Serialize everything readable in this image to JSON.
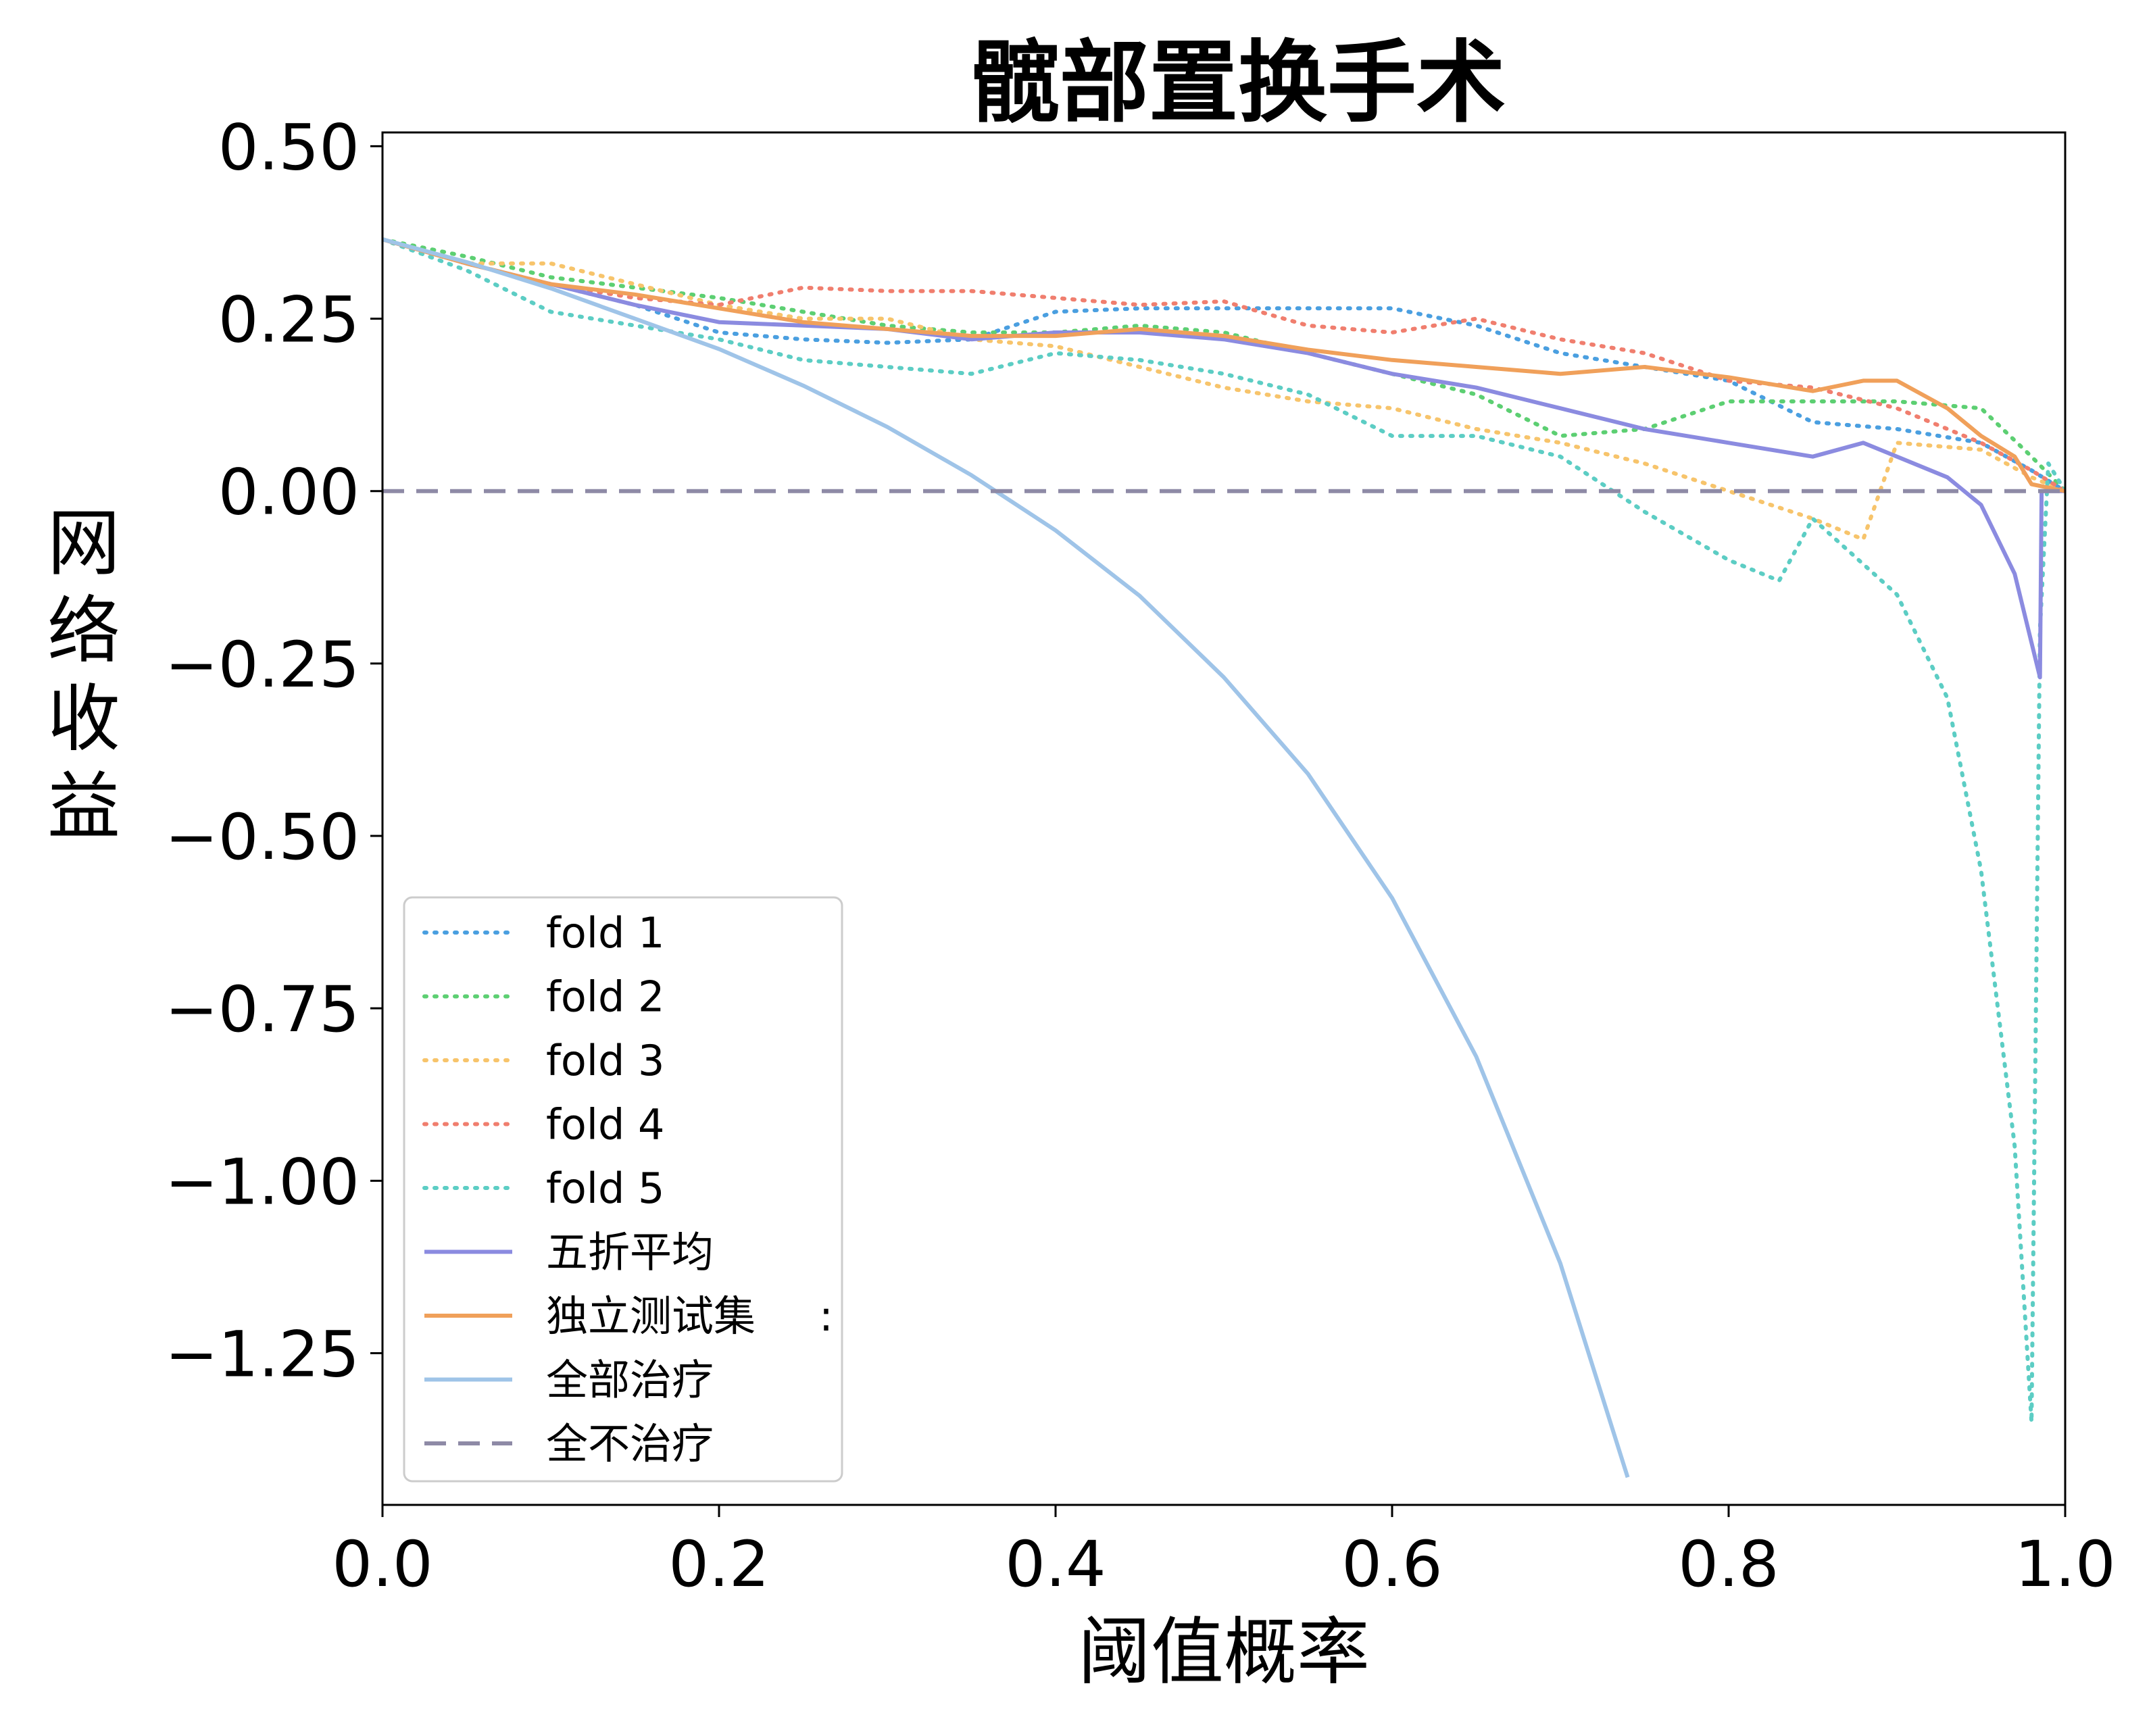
{
  "chart_data": {
    "type": "line",
    "title": "髋部置换手术",
    "xlabel": "阈值概率",
    "ylabel": "网络收益",
    "xlim": [
      0.0,
      1.0
    ],
    "ylim": [
      -1.47,
      0.52
    ],
    "xticks": [
      0.0,
      0.2,
      0.4,
      0.6,
      0.8,
      1.0
    ],
    "xtick_labels": [
      "0.0",
      "0.2",
      "0.4",
      "0.6",
      "0.8",
      "1.0"
    ],
    "yticks": [
      0.5,
      0.25,
      0.0,
      -0.25,
      -0.5,
      -0.75,
      -1.0,
      -1.25
    ],
    "ytick_labels": [
      "0.50",
      "0.25",
      "0.00",
      "−0.25",
      "−0.50",
      "−0.75",
      "−1.00",
      "−1.25"
    ],
    "grid": false,
    "legend_position": "lower-left",
    "series": [
      {
        "name": "fold 1",
        "style": "dotted",
        "color": "#4a9fe0",
        "x": [
          0.0,
          0.05,
          0.1,
          0.15,
          0.2,
          0.25,
          0.3,
          0.35,
          0.4,
          0.45,
          0.5,
          0.55,
          0.6,
          0.65,
          0.7,
          0.75,
          0.8,
          0.85,
          0.9,
          0.95,
          0.98,
          1.0
        ],
        "y": [
          0.365,
          0.33,
          0.3,
          0.27,
          0.23,
          0.22,
          0.215,
          0.22,
          0.26,
          0.265,
          0.265,
          0.265,
          0.265,
          0.24,
          0.2,
          0.18,
          0.16,
          0.1,
          0.09,
          0.07,
          0.03,
          0.0
        ]
      },
      {
        "name": "fold 2",
        "style": "dotted",
        "color": "#5ccf72",
        "x": [
          0.0,
          0.05,
          0.1,
          0.15,
          0.2,
          0.25,
          0.3,
          0.35,
          0.4,
          0.45,
          0.5,
          0.55,
          0.6,
          0.65,
          0.7,
          0.75,
          0.8,
          0.85,
          0.9,
          0.95,
          0.98,
          1.0
        ],
        "y": [
          0.365,
          0.34,
          0.31,
          0.295,
          0.28,
          0.26,
          0.24,
          0.23,
          0.23,
          0.24,
          0.23,
          0.2,
          0.17,
          0.14,
          0.08,
          0.09,
          0.13,
          0.13,
          0.13,
          0.12,
          0.05,
          0.0
        ]
      },
      {
        "name": "fold 3",
        "style": "dotted",
        "color": "#f7c46b",
        "x": [
          0.0,
          0.05,
          0.1,
          0.15,
          0.2,
          0.25,
          0.3,
          0.35,
          0.4,
          0.45,
          0.5,
          0.55,
          0.6,
          0.65,
          0.7,
          0.75,
          0.8,
          0.85,
          0.88,
          0.9,
          0.95,
          0.98,
          1.0
        ],
        "y": [
          0.365,
          0.33,
          0.33,
          0.3,
          0.27,
          0.25,
          0.25,
          0.22,
          0.21,
          0.18,
          0.15,
          0.13,
          0.12,
          0.09,
          0.07,
          0.04,
          0.0,
          -0.04,
          -0.07,
          0.07,
          0.06,
          0.02,
          0.0
        ]
      },
      {
        "name": "fold 4",
        "style": "dotted",
        "color": "#f07e6e",
        "x": [
          0.0,
          0.05,
          0.1,
          0.15,
          0.2,
          0.25,
          0.3,
          0.35,
          0.4,
          0.45,
          0.5,
          0.55,
          0.6,
          0.65,
          0.7,
          0.75,
          0.8,
          0.85,
          0.9,
          0.95,
          0.98,
          1.0
        ],
        "y": [
          0.365,
          0.33,
          0.3,
          0.28,
          0.27,
          0.295,
          0.29,
          0.29,
          0.28,
          0.27,
          0.275,
          0.24,
          0.23,
          0.25,
          0.22,
          0.2,
          0.16,
          0.15,
          0.12,
          0.07,
          0.03,
          0.0
        ]
      },
      {
        "name": "fold 5",
        "style": "dotted",
        "color": "#5ccdc4",
        "x": [
          0.0,
          0.05,
          0.1,
          0.15,
          0.2,
          0.25,
          0.3,
          0.35,
          0.4,
          0.45,
          0.5,
          0.55,
          0.6,
          0.65,
          0.7,
          0.75,
          0.8,
          0.83,
          0.85,
          0.9,
          0.93,
          0.95,
          0.97,
          0.98,
          0.985,
          0.99,
          1.0
        ],
        "y": [
          0.365,
          0.32,
          0.26,
          0.24,
          0.22,
          0.19,
          0.18,
          0.17,
          0.2,
          0.19,
          0.17,
          0.14,
          0.08,
          0.08,
          0.05,
          -0.03,
          -0.1,
          -0.13,
          -0.04,
          -0.15,
          -0.3,
          -0.55,
          -0.95,
          -1.35,
          -0.2,
          0.04,
          0.0
        ]
      },
      {
        "name": "五折平均",
        "style": "solid",
        "color": "#8b8be0",
        "x": [
          0.0,
          0.05,
          0.1,
          0.15,
          0.2,
          0.25,
          0.3,
          0.35,
          0.4,
          0.45,
          0.5,
          0.55,
          0.6,
          0.65,
          0.7,
          0.75,
          0.8,
          0.85,
          0.88,
          0.9,
          0.93,
          0.95,
          0.97,
          0.985,
          0.986,
          1.0
        ],
        "y": [
          0.365,
          0.33,
          0.3,
          0.27,
          0.245,
          0.24,
          0.235,
          0.22,
          0.23,
          0.23,
          0.22,
          0.2,
          0.17,
          0.15,
          0.12,
          0.09,
          0.07,
          0.05,
          0.07,
          0.05,
          0.02,
          -0.02,
          -0.12,
          -0.27,
          0.0,
          0.0
        ]
      },
      {
        "name": "独立测试集",
        "style": "solid",
        "color": "#f0a05a",
        "x": [
          0.0,
          0.05,
          0.1,
          0.15,
          0.2,
          0.25,
          0.3,
          0.35,
          0.4,
          0.45,
          0.5,
          0.55,
          0.6,
          0.65,
          0.7,
          0.75,
          0.8,
          0.85,
          0.88,
          0.9,
          0.93,
          0.95,
          0.97,
          0.98,
          1.0
        ],
        "y": [
          0.365,
          0.33,
          0.3,
          0.285,
          0.265,
          0.245,
          0.235,
          0.225,
          0.225,
          0.235,
          0.225,
          0.205,
          0.19,
          0.18,
          0.17,
          0.18,
          0.165,
          0.145,
          0.16,
          0.16,
          0.12,
          0.08,
          0.05,
          0.01,
          0.0
        ]
      },
      {
        "name": "全部治疗",
        "style": "solid",
        "color": "#9fc4e8",
        "x": [
          0.0,
          0.05,
          0.1,
          0.15,
          0.2,
          0.25,
          0.3,
          0.35,
          0.4,
          0.45,
          0.5,
          0.55,
          0.6,
          0.65,
          0.7,
          0.74
        ],
        "y": [
          0.365,
          0.332,
          0.294,
          0.25,
          0.206,
          0.153,
          0.093,
          0.023,
          -0.057,
          -0.152,
          -0.27,
          -0.41,
          -0.59,
          -0.82,
          -1.12,
          -1.43
        ]
      },
      {
        "name": "全不治疗",
        "style": "dashed",
        "color": "#8e8aa6",
        "x": [
          0.0,
          1.0
        ],
        "y": [
          0.0,
          0.0
        ]
      }
    ],
    "legend_extra_mark": ":"
  }
}
